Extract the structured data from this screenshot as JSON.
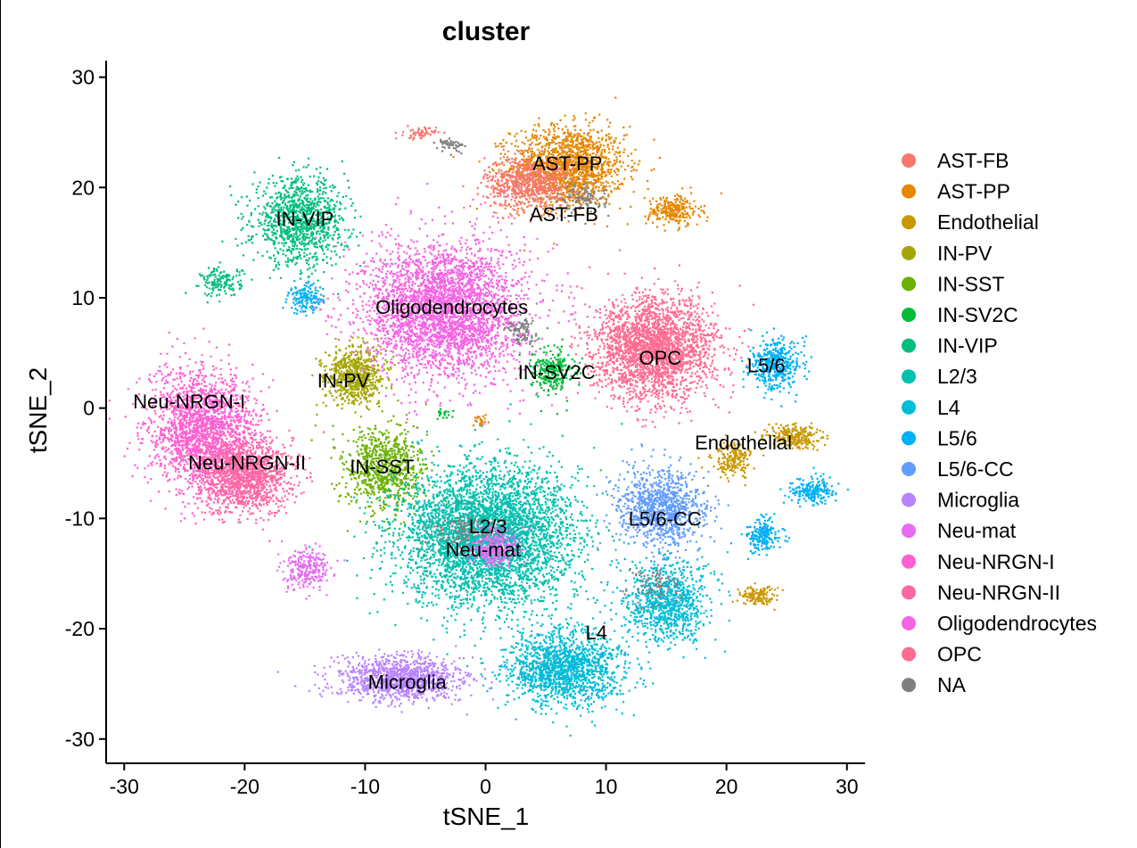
{
  "chart_data": {
    "type": "scatter",
    "title": "cluster",
    "xlabel": "tSNE_1",
    "ylabel": "tSNE_2",
    "xlim": [
      -31.5,
      31.5
    ],
    "ylim": [
      -32.2,
      31.5
    ],
    "xticks": [
      -30,
      -20,
      -10,
      0,
      10,
      20,
      30
    ],
    "yticks": [
      30,
      20,
      10,
      0,
      -10,
      -20,
      -30
    ],
    "grid": false,
    "legend_position": "right",
    "legend": [
      {
        "name": "AST-FB",
        "color": "#F8766D"
      },
      {
        "name": "AST-PP",
        "color": "#E58700"
      },
      {
        "name": "Endothelial",
        "color": "#C99800"
      },
      {
        "name": "IN-PV",
        "color": "#A3A500"
      },
      {
        "name": "IN-SST",
        "color": "#6BB100"
      },
      {
        "name": "IN-SV2C",
        "color": "#00BA38"
      },
      {
        "name": "IN-VIP",
        "color": "#00BF7D"
      },
      {
        "name": "L2/3",
        "color": "#00C0AF"
      },
      {
        "name": "L4",
        "color": "#00BCD8"
      },
      {
        "name": "L5/6",
        "color": "#00B0F6"
      },
      {
        "name": "L5/6-CC",
        "color": "#619CFF"
      },
      {
        "name": "Microglia",
        "color": "#B983FF"
      },
      {
        "name": "Neu-mat",
        "color": "#E76BF3"
      },
      {
        "name": "Neu-NRGN-I",
        "color": "#FD61D1"
      },
      {
        "name": "Neu-NRGN-II",
        "color": "#FF67A4"
      },
      {
        "name": "Oligodendrocytes",
        "color": "#F564E3"
      },
      {
        "name": "OPC",
        "color": "#FF6C91"
      },
      {
        "name": "NA",
        "color": "#7F7F7F"
      }
    ],
    "cluster_labels": [
      {
        "text": "AST-PP",
        "x": 6.8,
        "y": 22.2
      },
      {
        "text": "AST-FB",
        "x": 6.5,
        "y": 17.6
      },
      {
        "text": "IN-VIP",
        "x": -15.0,
        "y": 17.2
      },
      {
        "text": "Oligodendrocytes",
        "x": -2.8,
        "y": 9.2
      },
      {
        "text": "OPC",
        "x": 14.5,
        "y": 4.6
      },
      {
        "text": "L5/6",
        "x": 23.3,
        "y": 3.9
      },
      {
        "text": "IN-SV2C",
        "x": 5.9,
        "y": 3.3
      },
      {
        "text": "IN-PV",
        "x": -11.8,
        "y": 2.5
      },
      {
        "text": "Neu-NRGN-I",
        "x": -24.6,
        "y": 0.6
      },
      {
        "text": "Endothelial",
        "x": 21.4,
        "y": -3.1
      },
      {
        "text": "Neu-NRGN-II",
        "x": -19.8,
        "y": -4.9
      },
      {
        "text": "IN-SST",
        "x": -8.6,
        "y": -5.3
      },
      {
        "text": "L5/6-CC",
        "x": 14.9,
        "y": -10.0
      },
      {
        "text": "L2/3",
        "x": 0.2,
        "y": -10.7
      },
      {
        "text": "Neu-mat",
        "x": -0.2,
        "y": -12.8
      },
      {
        "text": "L4",
        "x": 9.2,
        "y": -20.3
      },
      {
        "text": "Microglia",
        "x": -6.5,
        "y": -24.8
      }
    ],
    "clusters": [
      {
        "name": "AST-PP",
        "cx": 6.8,
        "cy": 22.0,
        "sx": 4.3,
        "sy": 3.3,
        "n": 1500
      },
      {
        "name": "AST-FB",
        "cx": 3.5,
        "cy": 20.5,
        "sx": 3.3,
        "sy": 2.2,
        "n": 700
      },
      {
        "name": "AST-PP",
        "cx": 15.5,
        "cy": 18.0,
        "sx": 2.0,
        "sy": 1.3,
        "n": 250
      },
      {
        "name": "AST-FB",
        "cx": -5.5,
        "cy": 25.0,
        "sx": 1.2,
        "sy": 0.5,
        "n": 60
      },
      {
        "name": "IN-VIP",
        "cx": -15.5,
        "cy": 17.0,
        "sx": 3.5,
        "sy": 3.5,
        "n": 1100
      },
      {
        "name": "IN-VIP",
        "cx": -22.0,
        "cy": 11.5,
        "sx": 1.5,
        "sy": 1.2,
        "n": 150
      },
      {
        "name": "L5/6",
        "cx": -15.0,
        "cy": 10.0,
        "sx": 1.3,
        "sy": 1.2,
        "n": 150
      },
      {
        "name": "Oligodendrocytes",
        "cx": -3.5,
        "cy": 9.0,
        "sx": 6.0,
        "sy": 5.5,
        "n": 3400
      },
      {
        "name": "OPC",
        "cx": 14.0,
        "cy": 5.5,
        "sx": 4.6,
        "sy": 4.2,
        "n": 2500
      },
      {
        "name": "IN-SV2C",
        "cx": 5.5,
        "cy": 3.5,
        "sx": 1.6,
        "sy": 1.8,
        "n": 260
      },
      {
        "name": "L5/6",
        "cx": 24.0,
        "cy": 4.0,
        "sx": 1.9,
        "sy": 2.0,
        "n": 420
      },
      {
        "name": "Endothelial",
        "cx": 25.5,
        "cy": -2.5,
        "sx": 2.0,
        "sy": 1.0,
        "n": 250
      },
      {
        "name": "Endothelial",
        "cx": 20.5,
        "cy": -4.5,
        "sx": 1.5,
        "sy": 1.4,
        "n": 200
      },
      {
        "name": "IN-PV",
        "cx": -11.0,
        "cy": 3.0,
        "sx": 2.2,
        "sy": 2.3,
        "n": 650
      },
      {
        "name": "IN-SST",
        "cx": -8.5,
        "cy": -5.5,
        "sx": 3.0,
        "sy": 3.5,
        "n": 800
      },
      {
        "name": "Neu-NRGN-I",
        "cx": -23.5,
        "cy": -2.0,
        "sx": 4.0,
        "sy": 5.0,
        "n": 2000
      },
      {
        "name": "Neu-NRGN-II",
        "cx": -20.0,
        "cy": -6.0,
        "sx": 3.5,
        "sy": 3.0,
        "n": 1300
      },
      {
        "name": "Neu-mat",
        "cx": -15.0,
        "cy": -14.5,
        "sx": 1.7,
        "sy": 1.7,
        "n": 250
      },
      {
        "name": "L2/3",
        "cx": 0.0,
        "cy": -11.5,
        "sx": 6.5,
        "sy": 5.8,
        "n": 4200
      },
      {
        "name": "Neu-mat",
        "cx": 0.5,
        "cy": -12.5,
        "sx": 2.0,
        "sy": 1.5,
        "n": 300
      },
      {
        "name": "L5/6-CC",
        "cx": 14.5,
        "cy": -9.0,
        "sx": 3.2,
        "sy": 3.2,
        "n": 1000
      },
      {
        "name": "L4",
        "cx": 15.0,
        "cy": -17.5,
        "sx": 3.2,
        "sy": 3.3,
        "n": 900
      },
      {
        "name": "L4",
        "cx": 6.5,
        "cy": -23.5,
        "sx": 4.3,
        "sy": 3.2,
        "n": 1500
      },
      {
        "name": "L5/6",
        "cx": 23.0,
        "cy": -11.5,
        "sx": 1.3,
        "sy": 1.3,
        "n": 200
      },
      {
        "name": "L5/6",
        "cx": 27.0,
        "cy": -7.5,
        "sx": 1.6,
        "sy": 1.1,
        "n": 200
      },
      {
        "name": "Endothelial",
        "cx": 22.5,
        "cy": -17.0,
        "sx": 1.3,
        "sy": 0.8,
        "n": 130
      },
      {
        "name": "Microglia",
        "cx": -7.0,
        "cy": -24.5,
        "sx": 4.8,
        "sy": 1.8,
        "n": 1100
      },
      {
        "name": "IN-SV2C",
        "cx": -3.5,
        "cy": -0.5,
        "sx": 0.6,
        "sy": 0.5,
        "n": 20
      },
      {
        "name": "AST-PP",
        "cx": -0.5,
        "cy": -1.0,
        "sx": 0.5,
        "sy": 0.5,
        "n": 25
      },
      {
        "name": "NA",
        "cx": 3.0,
        "cy": 7.0,
        "sx": 1.2,
        "sy": 1.2,
        "n": 80
      },
      {
        "name": "NA",
        "cx": -3.0,
        "cy": 24.0,
        "sx": 1.2,
        "sy": 0.6,
        "n": 50
      },
      {
        "name": "NA",
        "cx": 8.0,
        "cy": 19.0,
        "sx": 2.0,
        "sy": 1.5,
        "n": 100
      },
      {
        "name": "NA",
        "cx": -2.0,
        "cy": -11.0,
        "sx": 2.5,
        "sy": 1.5,
        "n": 120
      },
      {
        "name": "NA",
        "cx": 14.0,
        "cy": -16.0,
        "sx": 2.0,
        "sy": 1.5,
        "n": 80
      }
    ]
  }
}
